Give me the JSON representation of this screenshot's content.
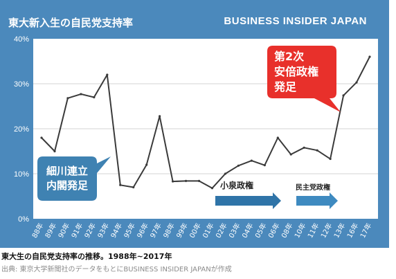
{
  "header": {
    "title": "東大新入生の自民党支持率",
    "brand": "BUSINESS INSIDER JAPAN"
  },
  "footer": {
    "caption": "東大生の自民党支持率の推移。1988年~2017年",
    "source": "出典: 東京大学新聞社のデータをもとにBUSINESS INSIDER JAPANが作成"
  },
  "colors": {
    "panel": "#4b89bc",
    "plot_bg": "#ffffff",
    "line": "#3a3a3a",
    "callout_blue": "#3f82b2",
    "callout_red": "#e8302b",
    "arrow_blue": "#2f74a8"
  },
  "chart_data": {
    "type": "line",
    "title": "東大新入生の自民党支持率",
    "xlabel": "",
    "ylabel": "",
    "ylim": [
      0,
      40
    ],
    "yticks": [
      "0%",
      "10%",
      "20%",
      "30%",
      "40%"
    ],
    "grid": true,
    "categories": [
      "88年",
      "89年",
      "90年",
      "91年",
      "92年",
      "93年",
      "94年",
      "95年",
      "96年",
      "97年",
      "98年",
      "99年",
      "00年",
      "01年",
      "02年",
      "03年",
      "04年",
      "05年",
      "06年",
      "08年",
      "10年",
      "11年",
      "12年",
      "13年",
      "16年",
      "17年"
    ],
    "values": [
      18,
      15,
      26.8,
      27.7,
      27,
      32,
      7.5,
      7,
      12,
      22.8,
      8.3,
      8.4,
      8.4,
      6.8,
      10,
      11.8,
      12.9,
      11.9,
      18,
      14.3,
      15.8,
      15.2,
      13.3,
      27.4,
      30.3,
      36
    ],
    "annotations": {
      "hosokawa": [
        "細川連立",
        "内閣発足"
      ],
      "koizumi": "小泉政権",
      "minshu": "民主党政権",
      "abe": [
        "第2次",
        "安倍政権",
        "発足"
      ]
    }
  }
}
